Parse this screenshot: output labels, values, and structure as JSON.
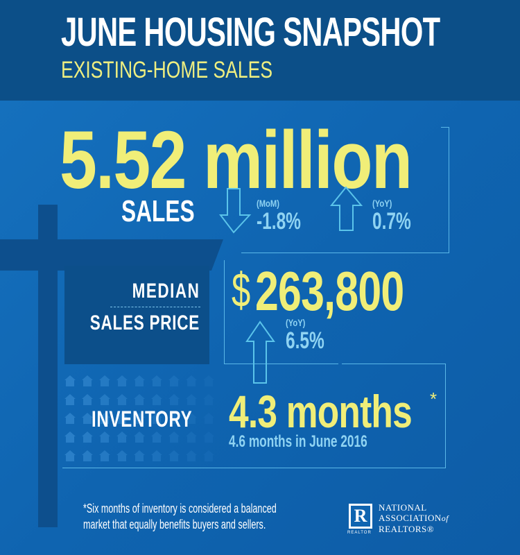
{
  "header": {
    "title": "JUNE HOUSING SNAPSHOT",
    "subtitle": "EXISTING-HOME SALES"
  },
  "sales": {
    "value": "5.52 million",
    "label": "SALES",
    "mom": {
      "period": "(MoM)",
      "change": "-1.8%",
      "direction": "down"
    },
    "yoy": {
      "period": "(YoY)",
      "change": "0.7%",
      "direction": "up"
    }
  },
  "price": {
    "label_line1": "MEDIAN",
    "label_line2": "SALES PRICE",
    "currency": "$",
    "value": "263,800",
    "yoy": {
      "period": "(YoY)",
      "change": "6.5%",
      "direction": "up"
    }
  },
  "inventory": {
    "label": "INVENTORY",
    "value": "4.3 months",
    "asterisk": "*",
    "comparison": "4.6 months in June 2016"
  },
  "footnote": {
    "line1": "*Six months of inventory is considered a balanced",
    "line2": "market that equally benefits buyers and sellers."
  },
  "logo": {
    "mark": "R",
    "mark_caption": "REALTOR",
    "line1": "NATIONAL",
    "line2": "ASSOCIATION",
    "of": "of",
    "line3": "REALTORS®"
  },
  "colors": {
    "header": "#0c4f88",
    "background": "#1167b5",
    "yellow": "#f0ee78",
    "light_blue": "#8fd3f2"
  }
}
